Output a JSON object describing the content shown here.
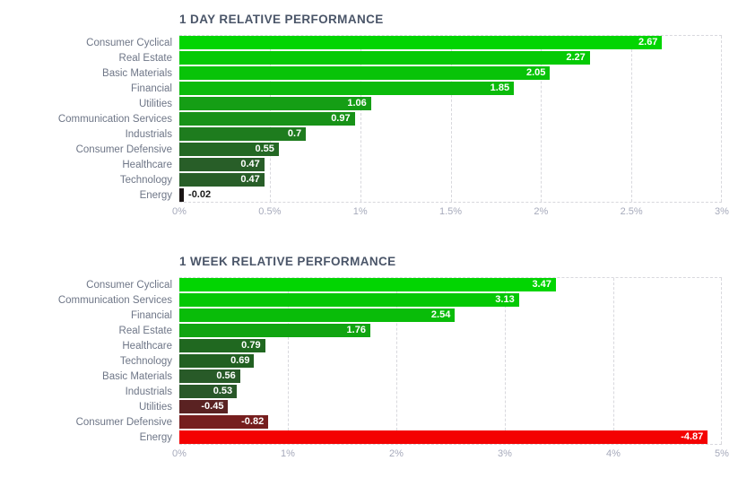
{
  "style": {
    "background": "#FFFFFF",
    "title": "#4A5568",
    "label": "#6E7687",
    "tick": "#A6AABB",
    "grid": "#D8D8DD",
    "value_inside_text": "#FFFFFF",
    "value_outside_text": "#1A1A1A"
  },
  "chart_data": [
    {
      "type": "bar",
      "orientation": "horizontal",
      "title": "1 DAY RELATIVE PERFORMANCE",
      "xlabel": "",
      "ylabel": "",
      "xlim": [
        0,
        3
      ],
      "grid": "dashed",
      "legend": "none",
      "xticks": [
        "0%",
        "0.5%",
        "1%",
        "1.5%",
        "2%",
        "2.5%",
        "3%"
      ],
      "categories": [
        "Consumer Cyclical",
        "Real Estate",
        "Basic Materials",
        "Financial",
        "Utilities",
        "Communication Services",
        "Industrials",
        "Consumer Defensive",
        "Healthcare",
        "Technology",
        "Energy"
      ],
      "values": [
        2.67,
        2.27,
        2.05,
        1.85,
        1.06,
        0.97,
        0.7,
        0.55,
        0.47,
        0.47,
        -0.02
      ],
      "value_labels": [
        "2.67",
        "2.27",
        "2.05",
        "1.85",
        "1.06",
        "0.97",
        "0.7",
        "0.55",
        "0.47",
        "0.47",
        "-0.02"
      ],
      "colors": [
        "#02D502",
        "#05CA05",
        "#08C308",
        "#0BBB0B",
        "#159E15",
        "#189218",
        "#1E7C1E",
        "#246824",
        "#285E28",
        "#285E28",
        "#1A1414"
      ],
      "value_inside": [
        true,
        true,
        true,
        true,
        true,
        true,
        true,
        true,
        true,
        true,
        false
      ]
    },
    {
      "type": "bar",
      "orientation": "horizontal",
      "title": "1 WEEK RELATIVE PERFORMANCE",
      "xlabel": "",
      "ylabel": "",
      "xlim": [
        0,
        5
      ],
      "grid": "dashed",
      "legend": "none",
      "xticks": [
        "0%",
        "1%",
        "2%",
        "3%",
        "4%",
        "5%"
      ],
      "categories": [
        "Consumer Cyclical",
        "Communication Services",
        "Financial",
        "Real Estate",
        "Healthcare",
        "Technology",
        "Basic Materials",
        "Industrials",
        "Utilities",
        "Consumer Defensive",
        "Energy"
      ],
      "values": [
        3.47,
        3.13,
        2.54,
        1.76,
        0.79,
        0.69,
        0.56,
        0.53,
        -0.45,
        -0.82,
        -4.87
      ],
      "value_labels": [
        "3.47",
        "3.13",
        "2.54",
        "1.76",
        "0.79",
        "0.69",
        "0.56",
        "0.53",
        "-0.45",
        "-0.82",
        "-4.87"
      ],
      "colors": [
        "#02D502",
        "#04C804",
        "#09BC09",
        "#11A411",
        "#206820",
        "#226022",
        "#285A28",
        "#295829",
        "#5A2222",
        "#761E1E",
        "#F40202"
      ],
      "value_inside": [
        true,
        true,
        true,
        true,
        true,
        true,
        true,
        true,
        true,
        true,
        true
      ]
    }
  ]
}
